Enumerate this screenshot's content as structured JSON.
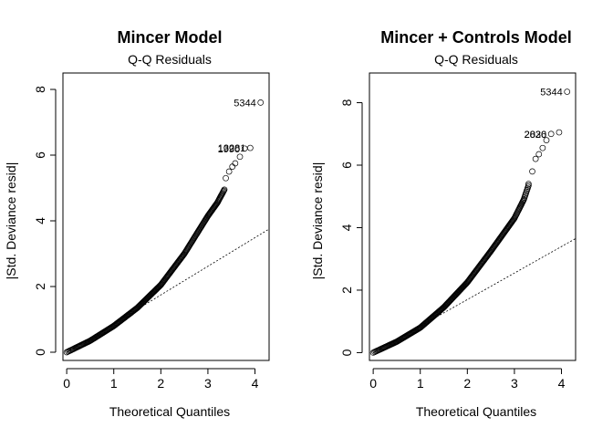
{
  "chart_data": [
    {
      "type": "scatter",
      "title": "Mincer Model",
      "subtitle": "Q-Q Residuals",
      "xlabel": "Theoretical Quantiles",
      "ylabel": "|Std. Deviance resid|",
      "xlim": [
        -0.08,
        4.3
      ],
      "ylim": [
        -0.25,
        8.5
      ],
      "xticks": [
        0,
        1,
        2,
        3,
        4
      ],
      "yticks": [
        0,
        2,
        4,
        6,
        8
      ],
      "reference_line": {
        "x": [
          0,
          4.3
        ],
        "y": [
          0,
          3.75
        ]
      },
      "curve": {
        "x": [
          0,
          0.5,
          1.0,
          1.5,
          2.0,
          2.5,
          3.0,
          3.2,
          3.35
        ],
        "y": [
          0,
          0.35,
          0.8,
          1.35,
          2.05,
          3.0,
          4.15,
          4.55,
          4.95
        ]
      },
      "points": [
        {
          "x": 3.38,
          "y": 5.3
        },
        {
          "x": 3.45,
          "y": 5.5
        },
        {
          "x": 3.52,
          "y": 5.65
        },
        {
          "x": 3.58,
          "y": 5.75
        },
        {
          "x": 3.68,
          "y": 5.95
        },
        {
          "x": 3.78,
          "y": 6.2
        },
        {
          "x": 3.9,
          "y": 6.22
        },
        {
          "x": 4.12,
          "y": 7.6
        }
      ],
      "labeled_points": [
        {
          "label": "5344",
          "x": 4.12,
          "y": 7.6
        },
        {
          "label": "13281",
          "x": 3.9,
          "y": 6.22
        },
        {
          "label": "1990",
          "x": 3.78,
          "y": 6.2
        }
      ]
    },
    {
      "type": "scatter",
      "title": "Mincer + Controls Model",
      "subtitle": "Q-Q Residuals",
      "xlabel": "Theoretical Quantiles",
      "ylabel": "|Std. Deviance resid|",
      "xlim": [
        -0.08,
        4.3
      ],
      "ylim": [
        -0.25,
        8.95
      ],
      "xticks": [
        0,
        1,
        2,
        3,
        4
      ],
      "yticks": [
        0,
        2,
        4,
        6,
        8
      ],
      "reference_line": {
        "x": [
          0,
          4.3
        ],
        "y": [
          0,
          3.65
        ]
      },
      "curve": {
        "x": [
          0,
          0.5,
          1.0,
          1.5,
          2.0,
          2.5,
          3.0,
          3.2,
          3.3
        ],
        "y": [
          0,
          0.35,
          0.8,
          1.45,
          2.25,
          3.25,
          4.3,
          4.9,
          5.35
        ]
      },
      "points": [
        {
          "x": 3.3,
          "y": 5.4
        },
        {
          "x": 3.38,
          "y": 5.8
        },
        {
          "x": 3.45,
          "y": 6.2
        },
        {
          "x": 3.52,
          "y": 6.35
        },
        {
          "x": 3.6,
          "y": 6.55
        },
        {
          "x": 3.68,
          "y": 6.8
        },
        {
          "x": 3.78,
          "y": 7.0
        },
        {
          "x": 3.95,
          "y": 7.05
        },
        {
          "x": 4.12,
          "y": 8.35
        }
      ],
      "labeled_points": [
        {
          "label": "5344",
          "x": 4.12,
          "y": 8.35
        },
        {
          "label": "2026",
          "x": 3.78,
          "y": 7.0
        },
        {
          "label": "2830",
          "x": 3.78,
          "y": 7.0
        }
      ]
    }
  ]
}
